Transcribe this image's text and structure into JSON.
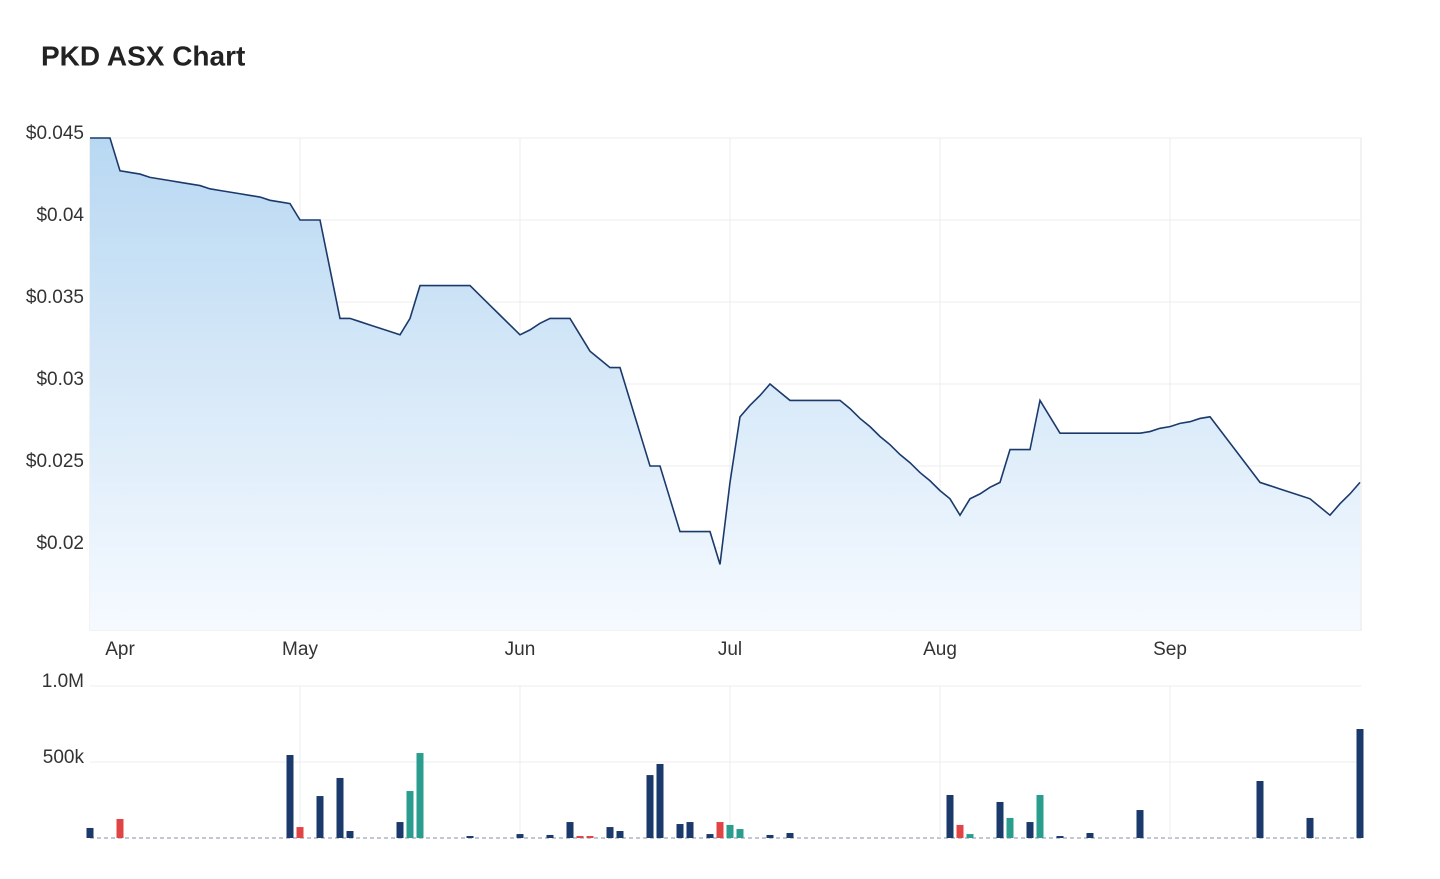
{
  "chart_data": [
    {
      "type": "line",
      "title": "PKD ASX Chart",
      "color": "#1b3a6b",
      "area": true,
      "grid": true,
      "categories": [
        null,
        null,
        null,
        "Apr",
        null,
        null,
        null,
        null,
        null,
        null,
        null,
        null,
        null,
        null,
        null,
        null,
        null,
        null,
        null,
        null,
        null,
        "May",
        null,
        null,
        null,
        null,
        null,
        null,
        null,
        null,
        null,
        null,
        null,
        null,
        null,
        null,
        null,
        null,
        null,
        null,
        null,
        null,
        null,
        "Jun",
        null,
        null,
        null,
        null,
        null,
        null,
        null,
        null,
        null,
        null,
        null,
        null,
        null,
        null,
        null,
        null,
        null,
        null,
        null,
        null,
        "Jul",
        null,
        null,
        null,
        null,
        null,
        null,
        null,
        null,
        null,
        null,
        null,
        null,
        null,
        null,
        null,
        null,
        null,
        null,
        null,
        null,
        "Aug",
        null,
        null,
        null,
        null,
        null,
        null,
        null,
        null,
        null,
        null,
        null,
        null,
        null,
        null,
        null,
        null,
        null,
        null,
        null,
        null,
        null,
        null,
        "Sep",
        null,
        null,
        null,
        null,
        null,
        null,
        null,
        null,
        null,
        null,
        null,
        null,
        null,
        null,
        null,
        null,
        null,
        null,
        null
      ],
      "values": [
        0.045,
        0.045,
        0.045,
        0.043,
        0.0429,
        0.0428,
        0.0426,
        0.0425,
        0.0424,
        0.0423,
        0.0422,
        0.0421,
        0.0419,
        0.0418,
        0.0417,
        0.0416,
        0.0415,
        0.0414,
        0.0412,
        0.0411,
        0.041,
        0.04,
        0.04,
        0.04,
        0.037,
        0.034,
        0.034,
        0.0338,
        0.0336,
        0.0334,
        0.0332,
        0.033,
        0.034,
        0.036,
        0.036,
        0.036,
        0.036,
        0.036,
        0.036,
        0.0354,
        0.0348,
        0.0342,
        0.0336,
        0.033,
        0.0333,
        0.0337,
        0.034,
        0.034,
        0.034,
        0.033,
        0.032,
        0.0315,
        0.031,
        0.031,
        0.029,
        0.027,
        0.025,
        0.025,
        0.023,
        0.021,
        0.021,
        0.021,
        0.021,
        0.019,
        0.024,
        0.028,
        0.0287,
        0.0293,
        0.03,
        0.0295,
        0.029,
        0.029,
        0.029,
        0.029,
        0.029,
        0.029,
        0.0285,
        0.0279,
        0.0274,
        0.0268,
        0.0263,
        0.0257,
        0.0252,
        0.0246,
        0.0241,
        0.0235,
        0.023,
        0.022,
        0.023,
        0.0233,
        0.0237,
        0.024,
        0.026,
        0.026,
        0.026,
        0.029,
        0.028,
        0.027,
        0.027,
        0.027,
        0.027,
        0.027,
        0.027,
        0.027,
        0.027,
        0.027,
        0.0271,
        0.0273,
        0.0274,
        0.0276,
        0.0277,
        0.0279,
        0.028,
        0.0272,
        0.0264,
        0.0256,
        0.0248,
        0.024,
        0.0238,
        0.0236,
        0.0234,
        0.0232,
        0.023,
        0.0225,
        0.022,
        0.0227,
        0.0233,
        0.024
      ],
      "ylim": [
        0.015,
        0.045
      ],
      "yticks": [
        {
          "value": 0.02,
          "label": "$0.02"
        },
        {
          "value": 0.025,
          "label": "$0.025"
        },
        {
          "value": 0.03,
          "label": "$0.03"
        },
        {
          "value": 0.035,
          "label": "$0.035"
        },
        {
          "value": 0.04,
          "label": "$0.04"
        },
        {
          "value": 0.045,
          "label": "$0.045"
        }
      ]
    },
    {
      "type": "bar",
      "grid": true,
      "values": [
        66000,
        0,
        0,
        125000,
        0,
        0,
        0,
        0,
        0,
        0,
        0,
        0,
        0,
        0,
        0,
        0,
        0,
        0,
        0,
        0,
        546000,
        72000,
        0,
        276000,
        0,
        395000,
        46000,
        0,
        0,
        0,
        0,
        105000,
        309000,
        559000,
        0,
        0,
        0,
        0,
        13000,
        0,
        0,
        0,
        0,
        26000,
        0,
        0,
        20000,
        0,
        105000,
        13000,
        13000,
        0,
        72000,
        46000,
        0,
        0,
        414000,
        487000,
        0,
        92000,
        105000,
        0,
        26000,
        105000,
        86000,
        59000,
        0,
        0,
        20000,
        0,
        33000,
        0,
        0,
        0,
        0,
        0,
        0,
        0,
        0,
        0,
        0,
        0,
        0,
        0,
        0,
        0,
        283000,
        86000,
        26000,
        0,
        0,
        237000,
        132000,
        0,
        105000,
        283000,
        0,
        13000,
        0,
        0,
        33000,
        0,
        0,
        0,
        0,
        184000,
        0,
        0,
        0,
        0,
        0,
        0,
        0,
        0,
        0,
        0,
        0,
        375000,
        0,
        0,
        0,
        0,
        132000,
        0,
        0,
        0,
        0,
        717000
      ],
      "colors": [
        "#1b3a6b",
        "#1b3a6b",
        "#1b3a6b",
        "#e04444",
        "#1b3a6b",
        "#1b3a6b",
        "#1b3a6b",
        "#1b3a6b",
        "#1b3a6b",
        "#1b3a6b",
        "#1b3a6b",
        "#1b3a6b",
        "#1b3a6b",
        "#1b3a6b",
        "#1b3a6b",
        "#1b3a6b",
        "#1b3a6b",
        "#1b3a6b",
        "#1b3a6b",
        "#1b3a6b",
        "#1b3a6b",
        "#e04444",
        "#1b3a6b",
        "#1b3a6b",
        "#1b3a6b",
        "#1b3a6b",
        "#1b3a6b",
        "#1b3a6b",
        "#1b3a6b",
        "#1b3a6b",
        "#1b3a6b",
        "#1b3a6b",
        "#2a9d8f",
        "#2a9d8f",
        "#1b3a6b",
        "#1b3a6b",
        "#1b3a6b",
        "#1b3a6b",
        "#1b3a6b",
        "#1b3a6b",
        "#1b3a6b",
        "#1b3a6b",
        "#1b3a6b",
        "#1b3a6b",
        "#1b3a6b",
        "#1b3a6b",
        "#1b3a6b",
        "#1b3a6b",
        "#1b3a6b",
        "#e04444",
        "#e04444",
        "#1b3a6b",
        "#1b3a6b",
        "#1b3a6b",
        "#1b3a6b",
        "#1b3a6b",
        "#1b3a6b",
        "#1b3a6b",
        "#1b3a6b",
        "#1b3a6b",
        "#1b3a6b",
        "#1b3a6b",
        "#1b3a6b",
        "#e04444",
        "#2a9d8f",
        "#2a9d8f",
        "#1b3a6b",
        "#1b3a6b",
        "#1b3a6b",
        "#1b3a6b",
        "#1b3a6b",
        "#1b3a6b",
        "#1b3a6b",
        "#1b3a6b",
        "#1b3a6b",
        "#1b3a6b",
        "#1b3a6b",
        "#1b3a6b",
        "#1b3a6b",
        "#1b3a6b",
        "#1b3a6b",
        "#1b3a6b",
        "#1b3a6b",
        "#1b3a6b",
        "#1b3a6b",
        "#1b3a6b",
        "#1b3a6b",
        "#e04444",
        "#2a9d8f",
        "#1b3a6b",
        "#1b3a6b",
        "#1b3a6b",
        "#2a9d8f",
        "#1b3a6b",
        "#1b3a6b",
        "#2a9d8f",
        "#1b3a6b",
        "#1b3a6b",
        "#1b3a6b",
        "#1b3a6b",
        "#1b3a6b",
        "#1b3a6b",
        "#1b3a6b",
        "#1b3a6b",
        "#1b3a6b",
        "#1b3a6b",
        "#1b3a6b",
        "#1b3a6b",
        "#1b3a6b",
        "#1b3a6b",
        "#1b3a6b",
        "#1b3a6b",
        "#1b3a6b",
        "#1b3a6b",
        "#1b3a6b",
        "#1b3a6b",
        "#1b3a6b",
        "#1b3a6b",
        "#1b3a6b",
        "#1b3a6b",
        "#1b3a6b",
        "#1b3a6b",
        "#1b3a6b",
        "#1b3a6b",
        "#1b3a6b",
        "#1b3a6b",
        "#1b3a6b",
        "#1b3a6b"
      ],
      "ylim": [
        0,
        1000000
      ],
      "yticks": [
        {
          "value": 500000,
          "label": "500k"
        },
        {
          "value": 1000000,
          "label": "1.0M"
        }
      ]
    }
  ]
}
